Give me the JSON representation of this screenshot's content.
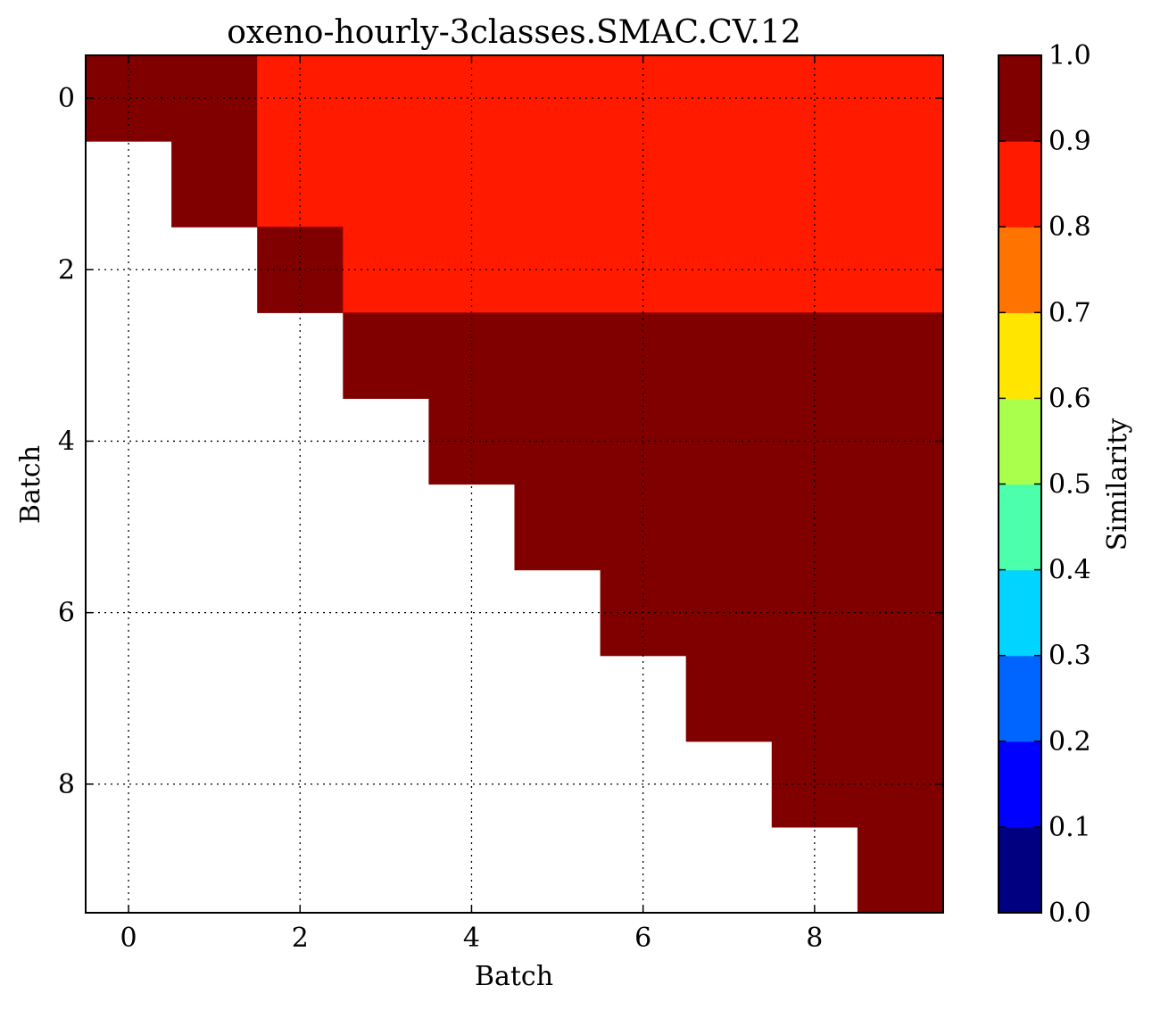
{
  "chart_data": {
    "type": "heatmap",
    "title": "oxeno-hourly-3classes.SMAC.CV.12",
    "xlabel": "Batch",
    "ylabel": "Batch",
    "x_ticks": [
      "0",
      "2",
      "4",
      "6",
      "8"
    ],
    "y_ticks": [
      "0",
      "2",
      "4",
      "6",
      "8"
    ],
    "rows": 10,
    "cols": 10,
    "grid": true,
    "colormap": "jet",
    "colorbar": {
      "label": "Similarity",
      "vmin": 0.0,
      "vmax": 1.0,
      "ticks": [
        "0.0",
        "0.1",
        "0.2",
        "0.3",
        "0.4",
        "0.5",
        "0.6",
        "0.7",
        "0.8",
        "0.9",
        "1.0"
      ],
      "levels": [
        "#000080",
        "#0000ff",
        "#0064ff",
        "#00d4ff",
        "#4cffaa",
        "#aaff4d",
        "#ffe500",
        "#ff7300",
        "#ff1a00",
        "#800000"
      ]
    },
    "values": [
      [
        0.95,
        0.95,
        0.85,
        0.85,
        0.85,
        0.85,
        0.85,
        0.85,
        0.85,
        0.85
      ],
      [
        null,
        0.95,
        0.85,
        0.85,
        0.85,
        0.85,
        0.85,
        0.85,
        0.85,
        0.85
      ],
      [
        null,
        null,
        0.95,
        0.85,
        0.85,
        0.85,
        0.85,
        0.85,
        0.85,
        0.85
      ],
      [
        null,
        null,
        null,
        0.95,
        0.95,
        0.95,
        0.95,
        0.95,
        0.95,
        0.95
      ],
      [
        null,
        null,
        null,
        null,
        0.95,
        0.95,
        0.95,
        0.95,
        0.95,
        0.95
      ],
      [
        null,
        null,
        null,
        null,
        null,
        0.95,
        0.95,
        0.95,
        0.95,
        0.95
      ],
      [
        null,
        null,
        null,
        null,
        null,
        null,
        0.95,
        0.95,
        0.95,
        0.95
      ],
      [
        null,
        null,
        null,
        null,
        null,
        null,
        null,
        0.95,
        0.95,
        0.95
      ],
      [
        null,
        null,
        null,
        null,
        null,
        null,
        null,
        null,
        0.95,
        0.95
      ],
      [
        null,
        null,
        null,
        null,
        null,
        null,
        null,
        null,
        null,
        0.95
      ]
    ]
  }
}
